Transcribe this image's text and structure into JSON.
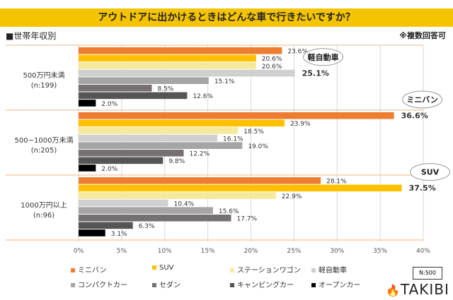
{
  "title": "アウトドアに出かけるときはどんな車で行きたいですか？",
  "subtitle": "■世帯年収別",
  "note": "※複数回答可",
  "sample": "N:500",
  "brand": "TAKIBI",
  "chart_data": {
    "type": "bar",
    "orientation": "horizontal",
    "xlim": [
      0,
      40
    ],
    "ticks": [
      "0%",
      "5%",
      "10%",
      "15%",
      "20%",
      "25%",
      "30%",
      "35%",
      "40%"
    ],
    "grid": true,
    "legend_placement": "bottom",
    "categories": [
      [
        "500万円未満",
        "(n:199)"
      ],
      [
        "500~1000万未満",
        "(n:205)"
      ],
      [
        "1000万円以上",
        "(n:96)"
      ]
    ],
    "series": [
      {
        "name": "ミニバン",
        "color": "#ed7d31",
        "values": [
          23.6,
          36.6,
          28.1
        ]
      },
      {
        "name": "SUV",
        "color": "#ffc000",
        "values": [
          20.6,
          23.9,
          37.5
        ]
      },
      {
        "name": "ステーションワゴン",
        "color": "#f6e99b",
        "values": [
          20.6,
          18.5,
          22.9
        ]
      },
      {
        "name": "軽自動車",
        "color": "#d0d0d0",
        "values": [
          25.1,
          16.1,
          10.4
        ]
      },
      {
        "name": "コンパクトカー",
        "color": "#a5a5a5",
        "values": [
          15.1,
          19.0,
          15.6
        ]
      },
      {
        "name": "セダン",
        "color": "#767171",
        "values": [
          8.5,
          12.2,
          17.7
        ]
      },
      {
        "name": "キャンピングカー",
        "color": "#555555",
        "values": [
          12.6,
          9.8,
          6.3
        ]
      },
      {
        "name": "オープンカー",
        "color": "#000000",
        "values": [
          2.0,
          2.0,
          3.1
        ]
      }
    ],
    "highlights": [
      {
        "group": 0,
        "series": 3,
        "callout": "軽自動車"
      },
      {
        "group": 1,
        "series": 0,
        "callout": "ミニバン"
      },
      {
        "group": 2,
        "series": 1,
        "callout": "SUV"
      }
    ]
  }
}
